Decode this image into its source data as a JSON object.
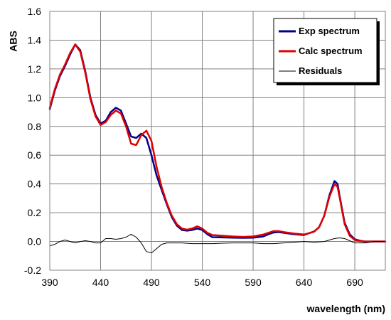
{
  "chart_data": {
    "type": "line",
    "xlabel": "wavelength (nm)",
    "ylabel": "ABS",
    "xlim": [
      390,
      720
    ],
    "ylim": [
      -0.2,
      1.6
    ],
    "x_ticks": [
      390,
      440,
      490,
      540,
      590,
      640,
      690
    ],
    "y_ticks": [
      -0.2,
      0.0,
      0.2,
      0.4,
      0.6,
      0.8,
      1.0,
      1.2,
      1.4,
      1.6
    ],
    "y_tick_labels": [
      "-0.2",
      "0.0",
      "0.2",
      "0.4",
      "0.6",
      "0.8",
      "1.0",
      "1.2",
      "1.4",
      "1.6"
    ],
    "grid": true,
    "legend_position": "top-right",
    "series": [
      {
        "name": "Exp spectrum",
        "color": "#00008b",
        "x": [
          390,
          395,
          400,
          405,
          410,
          415,
          420,
          425,
          430,
          435,
          440,
          445,
          450,
          455,
          460,
          465,
          470,
          475,
          480,
          485,
          490,
          495,
          500,
          505,
          510,
          515,
          520,
          525,
          530,
          535,
          540,
          545,
          550,
          560,
          570,
          580,
          590,
          600,
          605,
          610,
          615,
          620,
          630,
          640,
          650,
          655,
          660,
          665,
          670,
          673,
          675,
          680,
          685,
          690,
          695,
          700,
          710,
          720
        ],
        "values": [
          0.92,
          1.05,
          1.15,
          1.22,
          1.3,
          1.37,
          1.33,
          1.18,
          1.0,
          0.88,
          0.82,
          0.84,
          0.9,
          0.93,
          0.91,
          0.82,
          0.73,
          0.72,
          0.75,
          0.72,
          0.6,
          0.46,
          0.36,
          0.26,
          0.17,
          0.11,
          0.08,
          0.075,
          0.08,
          0.09,
          0.08,
          0.05,
          0.03,
          0.028,
          0.026,
          0.025,
          0.026,
          0.035,
          0.05,
          0.062,
          0.065,
          0.06,
          0.05,
          0.045,
          0.07,
          0.1,
          0.18,
          0.32,
          0.42,
          0.4,
          0.32,
          0.13,
          0.05,
          0.015,
          0.005,
          0.0,
          0.0,
          0.0
        ]
      },
      {
        "name": "Calc spectrum",
        "color": "#e00000",
        "x": [
          390,
          395,
          400,
          405,
          410,
          415,
          420,
          425,
          430,
          435,
          440,
          445,
          450,
          455,
          460,
          465,
          470,
          475,
          480,
          485,
          490,
          495,
          500,
          505,
          510,
          515,
          520,
          525,
          530,
          535,
          540,
          545,
          550,
          560,
          570,
          580,
          590,
          600,
          605,
          610,
          615,
          620,
          630,
          640,
          650,
          655,
          660,
          665,
          670,
          673,
          675,
          680,
          685,
          690,
          695,
          700,
          710,
          720
        ],
        "values": [
          0.93,
          1.06,
          1.16,
          1.23,
          1.31,
          1.37,
          1.32,
          1.17,
          0.99,
          0.87,
          0.81,
          0.83,
          0.88,
          0.91,
          0.89,
          0.8,
          0.68,
          0.67,
          0.74,
          0.77,
          0.7,
          0.52,
          0.38,
          0.27,
          0.18,
          0.12,
          0.09,
          0.082,
          0.09,
          0.105,
          0.09,
          0.06,
          0.045,
          0.04,
          0.035,
          0.032,
          0.035,
          0.048,
          0.06,
          0.072,
          0.072,
          0.065,
          0.055,
          0.048,
          0.068,
          0.1,
          0.18,
          0.31,
          0.4,
          0.38,
          0.31,
          0.12,
          0.04,
          0.01,
          0.003,
          0.0,
          0.0,
          0.0
        ]
      },
      {
        "name": "Residuals",
        "color": "#000000",
        "x": [
          390,
          395,
          400,
          405,
          410,
          415,
          420,
          425,
          430,
          435,
          440,
          445,
          450,
          455,
          460,
          465,
          470,
          475,
          480,
          485,
          490,
          495,
          500,
          505,
          510,
          520,
          530,
          540,
          550,
          560,
          570,
          580,
          590,
          600,
          610,
          620,
          630,
          640,
          650,
          660,
          665,
          670,
          675,
          680,
          690,
          700,
          710,
          720
        ],
        "values": [
          -0.03,
          -0.02,
          0.0,
          0.01,
          0.0,
          -0.01,
          0.0,
          0.005,
          0.0,
          -0.01,
          -0.01,
          0.02,
          0.02,
          0.015,
          0.02,
          0.03,
          0.05,
          0.03,
          -0.01,
          -0.07,
          -0.08,
          -0.05,
          -0.02,
          -0.01,
          -0.01,
          -0.01,
          -0.015,
          -0.015,
          -0.015,
          -0.012,
          -0.01,
          -0.01,
          -0.01,
          -0.015,
          -0.015,
          -0.01,
          -0.005,
          0.0,
          -0.005,
          0.0,
          0.01,
          0.02,
          0.025,
          0.02,
          -0.01,
          -0.01,
          0.0,
          0.0
        ]
      }
    ]
  }
}
